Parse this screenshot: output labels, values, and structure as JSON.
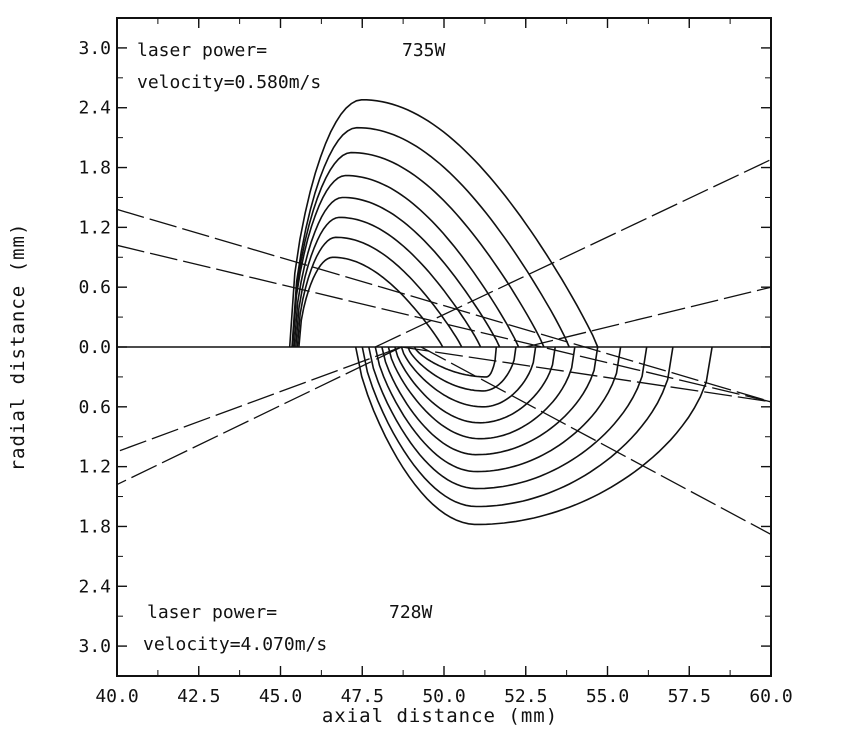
{
  "chart_data": {
    "type": "contour",
    "xlabel": "axial distance (mm)",
    "ylabel": "radial distance (mm)",
    "xlim": [
      40.0,
      60.0
    ],
    "ylim_top": [
      0.0,
      3.3
    ],
    "ylim_bottom": [
      0.0,
      3.3
    ],
    "x_ticks": [
      "40.0",
      "42.5",
      "45.0",
      "47.5",
      "50.0",
      "52.5",
      "55.0",
      "57.5",
      "60.0"
    ],
    "y_ticks_top": [
      "3.0",
      "2.4",
      "1.8",
      "1.2",
      "0.6",
      "0.0"
    ],
    "y_ticks_bottom": [
      "0.6",
      "1.2",
      "1.8",
      "2.4",
      "3.0"
    ],
    "panels": [
      {
        "name": "top",
        "laser_power_label": "laser power=",
        "laser_power_value": "735W",
        "velocity_label": "velocity=0.580m/s",
        "contours": [
          {
            "cx": 49.0,
            "rx": 6.0,
            "h": 2.48
          },
          {
            "cx": 48.7,
            "rx": 5.4,
            "h": 2.2
          },
          {
            "cx": 48.4,
            "rx": 4.9,
            "h": 1.95
          },
          {
            "cx": 48.1,
            "rx": 4.4,
            "h": 1.72
          },
          {
            "cx": 47.9,
            "rx": 4.0,
            "h": 1.5
          },
          {
            "cx": 47.7,
            "rx": 3.6,
            "h": 1.3
          },
          {
            "cx": 47.5,
            "rx": 3.2,
            "h": 1.1
          },
          {
            "cx": 47.3,
            "rx": 2.8,
            "h": 0.9
          }
        ],
        "beam_lines": [
          {
            "x1": 40.0,
            "y1": 1.38,
            "x2": 60.0,
            "y2": -0.55
          },
          {
            "x1": 40.0,
            "y1": 1.02,
            "x2": 60.0,
            "y2": -0.55
          },
          {
            "x1": 47.9,
            "y1": 0.0,
            "x2": 60.0,
            "y2": 1.88
          },
          {
            "x1": 52.5,
            "y1": 0.0,
            "x2": 60.0,
            "y2": 0.6
          }
        ]
      },
      {
        "name": "bottom",
        "laser_power_label": "laser power=",
        "laser_power_value": "728W",
        "velocity_label": "velocity=4.070m/s",
        "contours": [
          {
            "x0": 47.3,
            "x1": 58.2,
            "peak": 51.0,
            "d": 1.78
          },
          {
            "x0": 47.5,
            "x1": 57.0,
            "peak": 51.0,
            "d": 1.6
          },
          {
            "x0": 47.7,
            "x1": 56.2,
            "peak": 51.0,
            "d": 1.42
          },
          {
            "x0": 47.9,
            "x1": 55.4,
            "peak": 51.0,
            "d": 1.25
          },
          {
            "x0": 48.1,
            "x1": 54.7,
            "peak": 51.0,
            "d": 1.08
          },
          {
            "x0": 48.3,
            "x1": 54.0,
            "peak": 51.1,
            "d": 0.92
          },
          {
            "x0": 48.5,
            "x1": 53.4,
            "peak": 51.1,
            "d": 0.76
          },
          {
            "x0": 48.7,
            "x1": 52.8,
            "peak": 51.2,
            "d": 0.6
          },
          {
            "x0": 48.9,
            "x1": 52.2,
            "peak": 51.2,
            "d": 0.44
          },
          {
            "x0": 49.1,
            "x1": 51.6,
            "peak": 51.3,
            "d": 0.3
          }
        ],
        "beam_lines": [
          {
            "x1": 48.7,
            "y1": 0.0,
            "x2": 40.0,
            "y2": 1.05
          },
          {
            "x1": 48.7,
            "y1": 0.0,
            "x2": 40.0,
            "y2": 1.38
          },
          {
            "x1": 48.7,
            "y1": 0.0,
            "x2": 60.0,
            "y2": 0.55
          },
          {
            "x1": 49.3,
            "y1": 0.0,
            "x2": 60.0,
            "y2": 1.88
          }
        ]
      }
    ]
  }
}
